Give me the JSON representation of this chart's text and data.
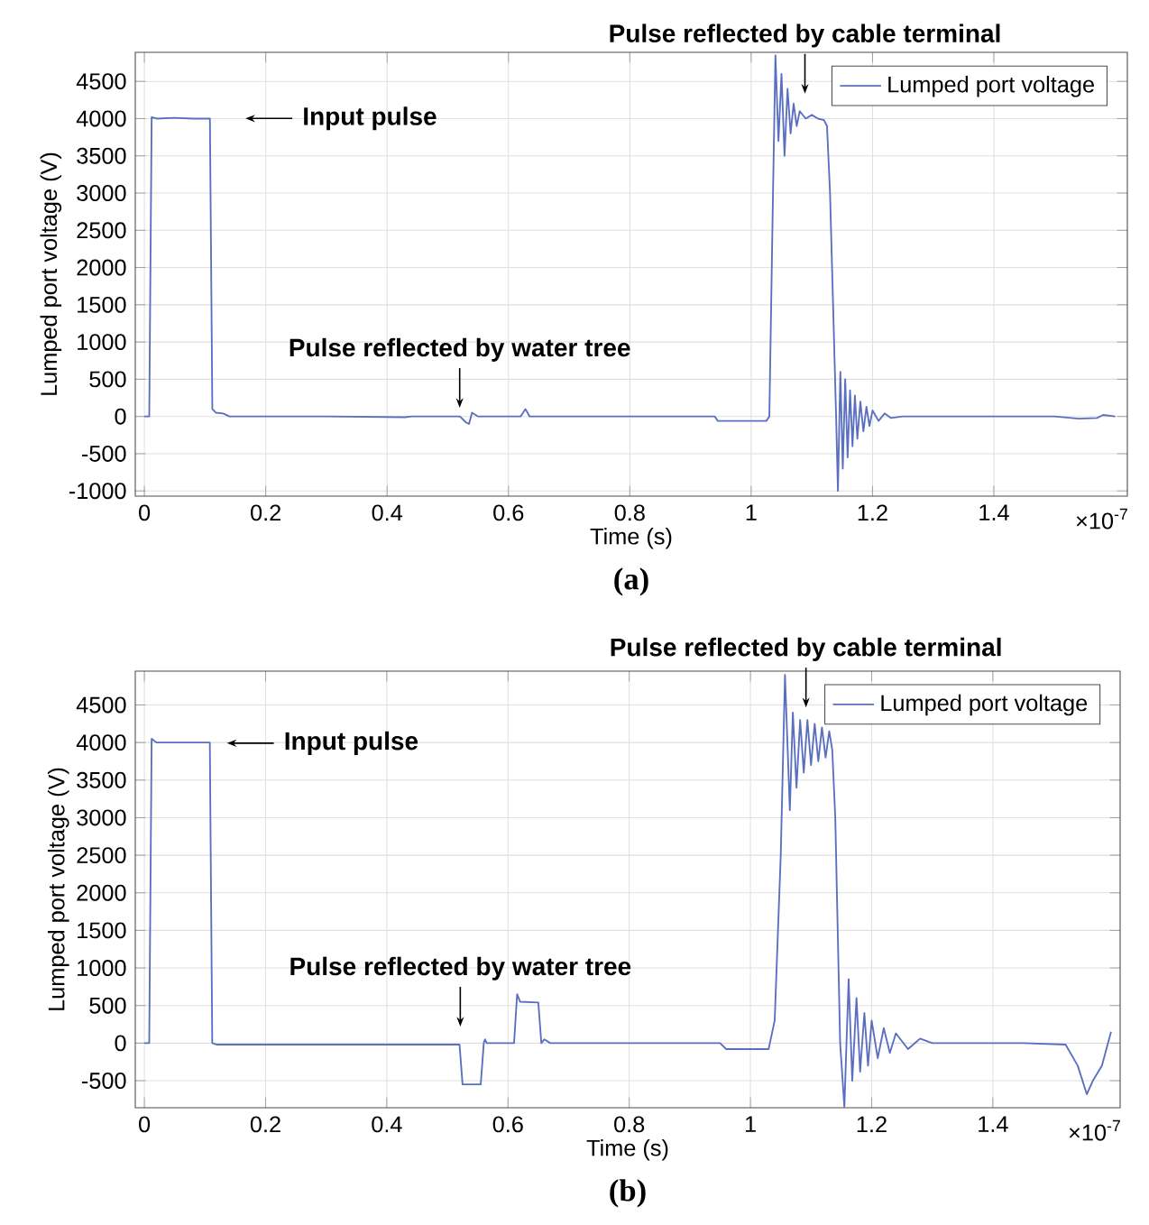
{
  "chart_data": [
    {
      "type": "line",
      "xlabel": "Time (s)",
      "ylabel": "Lumped port voltage (V)",
      "xlim": [
        -0.015,
        1.62
      ],
      "ylim": [
        -1070,
        4890
      ],
      "xticks": [
        0,
        0.2,
        0.4,
        0.6,
        0.8,
        1,
        1.2,
        1.4
      ],
      "yticks": [
        -1000,
        -500,
        0,
        500,
        1000,
        1500,
        2000,
        2500,
        3000,
        3500,
        4000,
        4500
      ],
      "grid": true,
      "legend": "top right",
      "series": [
        {
          "name": "Lumped port voltage",
          "color": "#5b6fc1",
          "x": [
            0,
            0.008,
            0.012,
            0.02,
            0.05,
            0.08,
            0.108,
            0.112,
            0.118,
            0.13,
            0.14,
            0.3,
            0.43,
            0.44,
            0.52,
            0.53,
            0.535,
            0.54,
            0.55,
            0.62,
            0.628,
            0.635,
            0.94,
            0.945,
            1.025,
            1.03,
            1.036,
            1.04,
            1.045,
            1.05,
            1.055,
            1.06,
            1.065,
            1.07,
            1.075,
            1.08,
            1.09,
            1.1,
            1.11,
            1.12,
            1.125,
            1.13,
            1.135,
            1.14,
            1.143,
            1.147,
            1.151,
            1.155,
            1.159,
            1.163,
            1.167,
            1.171,
            1.175,
            1.18,
            1.185,
            1.19,
            1.195,
            1.2,
            1.21,
            1.22,
            1.23,
            1.25,
            1.5,
            1.54,
            1.57,
            1.58,
            1.6
          ],
          "values": [
            0,
            0,
            4020,
            4000,
            4010,
            4000,
            4000,
            100,
            50,
            40,
            0,
            0,
            -10,
            0,
            0,
            -80,
            -100,
            50,
            0,
            0,
            100,
            0,
            0,
            -60,
            -60,
            0,
            3000,
            4850,
            3700,
            4600,
            3500,
            4400,
            3800,
            4200,
            3900,
            4100,
            4000,
            4050,
            4000,
            3980,
            3900,
            3000,
            1500,
            0,
            -1000,
            600,
            -700,
            500,
            -550,
            350,
            -400,
            280,
            -300,
            200,
            -200,
            130,
            -130,
            80,
            -60,
            40,
            -20,
            0,
            0,
            -30,
            -20,
            20,
            0
          ]
        }
      ],
      "annotations": [
        "Input pulse",
        "Pulse reflected by water tree",
        "Pulse reflected by cable terminal",
        "×10$^{-7}$",
        "(a)"
      ]
    },
    {
      "type": "line",
      "xlabel": "Time (s)",
      "ylabel": "Lumped port voltage (V)",
      "xlim": [
        -0.015,
        1.61
      ],
      "ylim": [
        -860,
        4950
      ],
      "xticks": [
        0,
        0.2,
        0.4,
        0.6,
        0.8,
        1,
        1.2,
        1.4
      ],
      "yticks": [
        -500,
        0,
        500,
        1000,
        1500,
        2000,
        2500,
        3000,
        3500,
        4000,
        4500
      ],
      "grid": true,
      "legend": "top right",
      "series": [
        {
          "name": "Lumped port voltage",
          "color": "#5b6fc1",
          "x": [
            0,
            0.008,
            0.012,
            0.02,
            0.108,
            0.112,
            0.12,
            0.52,
            0.525,
            0.555,
            0.56,
            0.562,
            0.565,
            0.61,
            0.615,
            0.62,
            0.65,
            0.655,
            0.66,
            0.67,
            0.95,
            0.96,
            1.03,
            1.04,
            1.05,
            1.057,
            1.065,
            1.07,
            1.076,
            1.082,
            1.088,
            1.094,
            1.1,
            1.106,
            1.112,
            1.118,
            1.124,
            1.13,
            1.135,
            1.14,
            1.148,
            1.155,
            1.162,
            1.168,
            1.175,
            1.181,
            1.188,
            1.194,
            1.2,
            1.21,
            1.22,
            1.23,
            1.24,
            1.26,
            1.28,
            1.3,
            1.45,
            1.52,
            1.54,
            1.555,
            1.565,
            1.58,
            1.595
          ],
          "values": [
            0,
            0,
            4050,
            4000,
            4000,
            0,
            -20,
            -20,
            -550,
            -550,
            0,
            50,
            0,
            0,
            650,
            550,
            540,
            0,
            50,
            0,
            0,
            -80,
            -80,
            300,
            2500,
            4900,
            3100,
            4400,
            3400,
            4300,
            3600,
            4300,
            3700,
            4250,
            3750,
            4200,
            3800,
            4150,
            3900,
            3000,
            0,
            -850,
            850,
            -500,
            600,
            -380,
            400,
            -300,
            300,
            -200,
            200,
            -130,
            130,
            -80,
            60,
            0,
            0,
            -20,
            -300,
            -680,
            -500,
            -300,
            150
          ]
        }
      ],
      "annotations": [
        "Input pulse",
        "Pulse reflected by water tree",
        "Pulse reflected by cable terminal",
        "×10$^{-7}$",
        "(b)"
      ]
    }
  ]
}
